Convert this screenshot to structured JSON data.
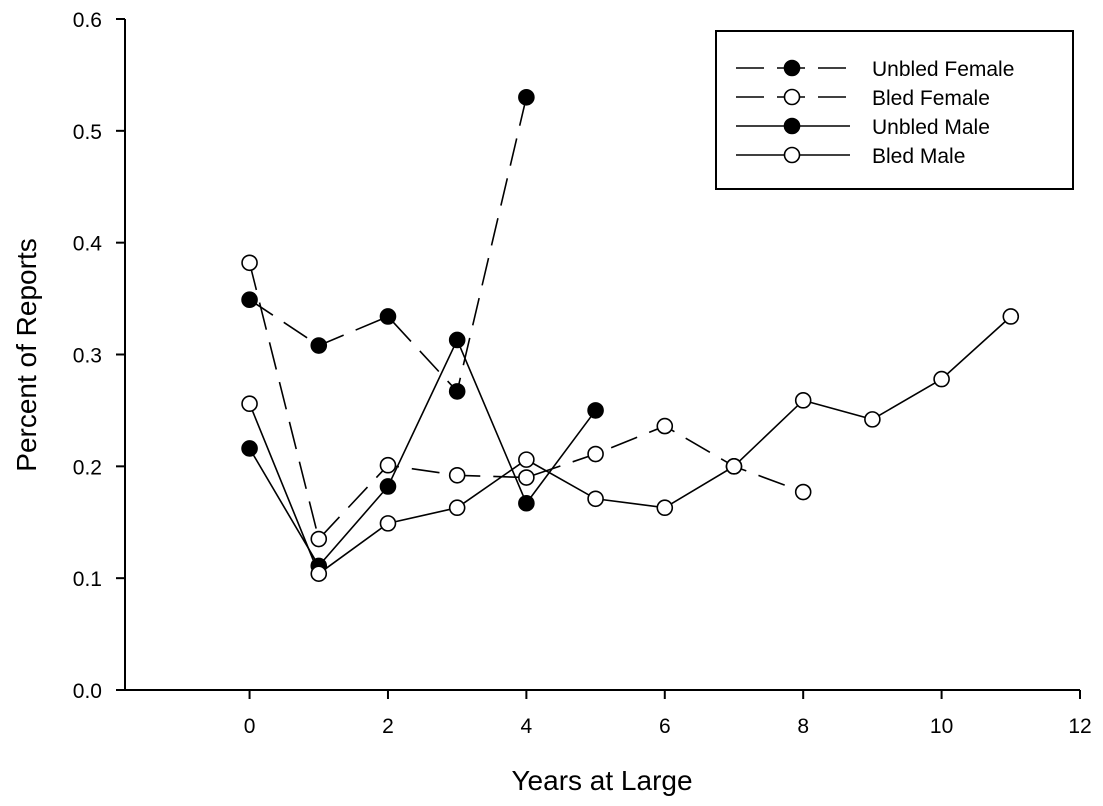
{
  "chart_data": {
    "type": "line",
    "xlabel": "Years at Large",
    "ylabel": "Percent of Reports",
    "xlim": [
      -1.8,
      12
    ],
    "ylim": [
      0,
      0.6
    ],
    "xticks": [
      0,
      2,
      4,
      6,
      8,
      10,
      12
    ],
    "xtick_labels": [
      "0",
      "2",
      "4",
      "6",
      "8",
      "10",
      "12"
    ],
    "yticks": [
      0.0,
      0.1,
      0.2,
      0.3,
      0.4,
      0.5,
      0.6
    ],
    "ytick_labels": [
      "0.0",
      "0.1",
      "0.2",
      "0.3",
      "0.4",
      "0.5",
      "0.6"
    ],
    "grid": false,
    "legend_position": "top-right",
    "series": [
      {
        "name": "Unbled Female",
        "line": "dashed",
        "marker": "filled-circle",
        "x": [
          0,
          1,
          2,
          3,
          4
        ],
        "y": [
          0.349,
          0.308,
          0.334,
          0.267,
          0.53
        ]
      },
      {
        "name": "Bled Female",
        "line": "dashed",
        "marker": "open-circle",
        "x": [
          0,
          1,
          2,
          3,
          4,
          5,
          6,
          7,
          8
        ],
        "y": [
          0.382,
          0.135,
          0.201,
          0.192,
          0.19,
          0.211,
          0.236,
          0.2,
          0.177
        ]
      },
      {
        "name": "Unbled Male",
        "line": "solid",
        "marker": "filled-circle",
        "x": [
          0,
          1,
          2,
          3,
          4,
          5
        ],
        "y": [
          0.216,
          0.111,
          0.182,
          0.313,
          0.167,
          0.25
        ]
      },
      {
        "name": "Bled Male",
        "line": "solid",
        "marker": "open-circle",
        "x": [
          0,
          1,
          2,
          3,
          4,
          5,
          6,
          7,
          8,
          9,
          10,
          11
        ],
        "y": [
          0.256,
          0.104,
          0.149,
          0.163,
          0.206,
          0.171,
          0.163,
          0.2,
          0.259,
          0.242,
          0.278,
          0.334
        ]
      }
    ]
  }
}
